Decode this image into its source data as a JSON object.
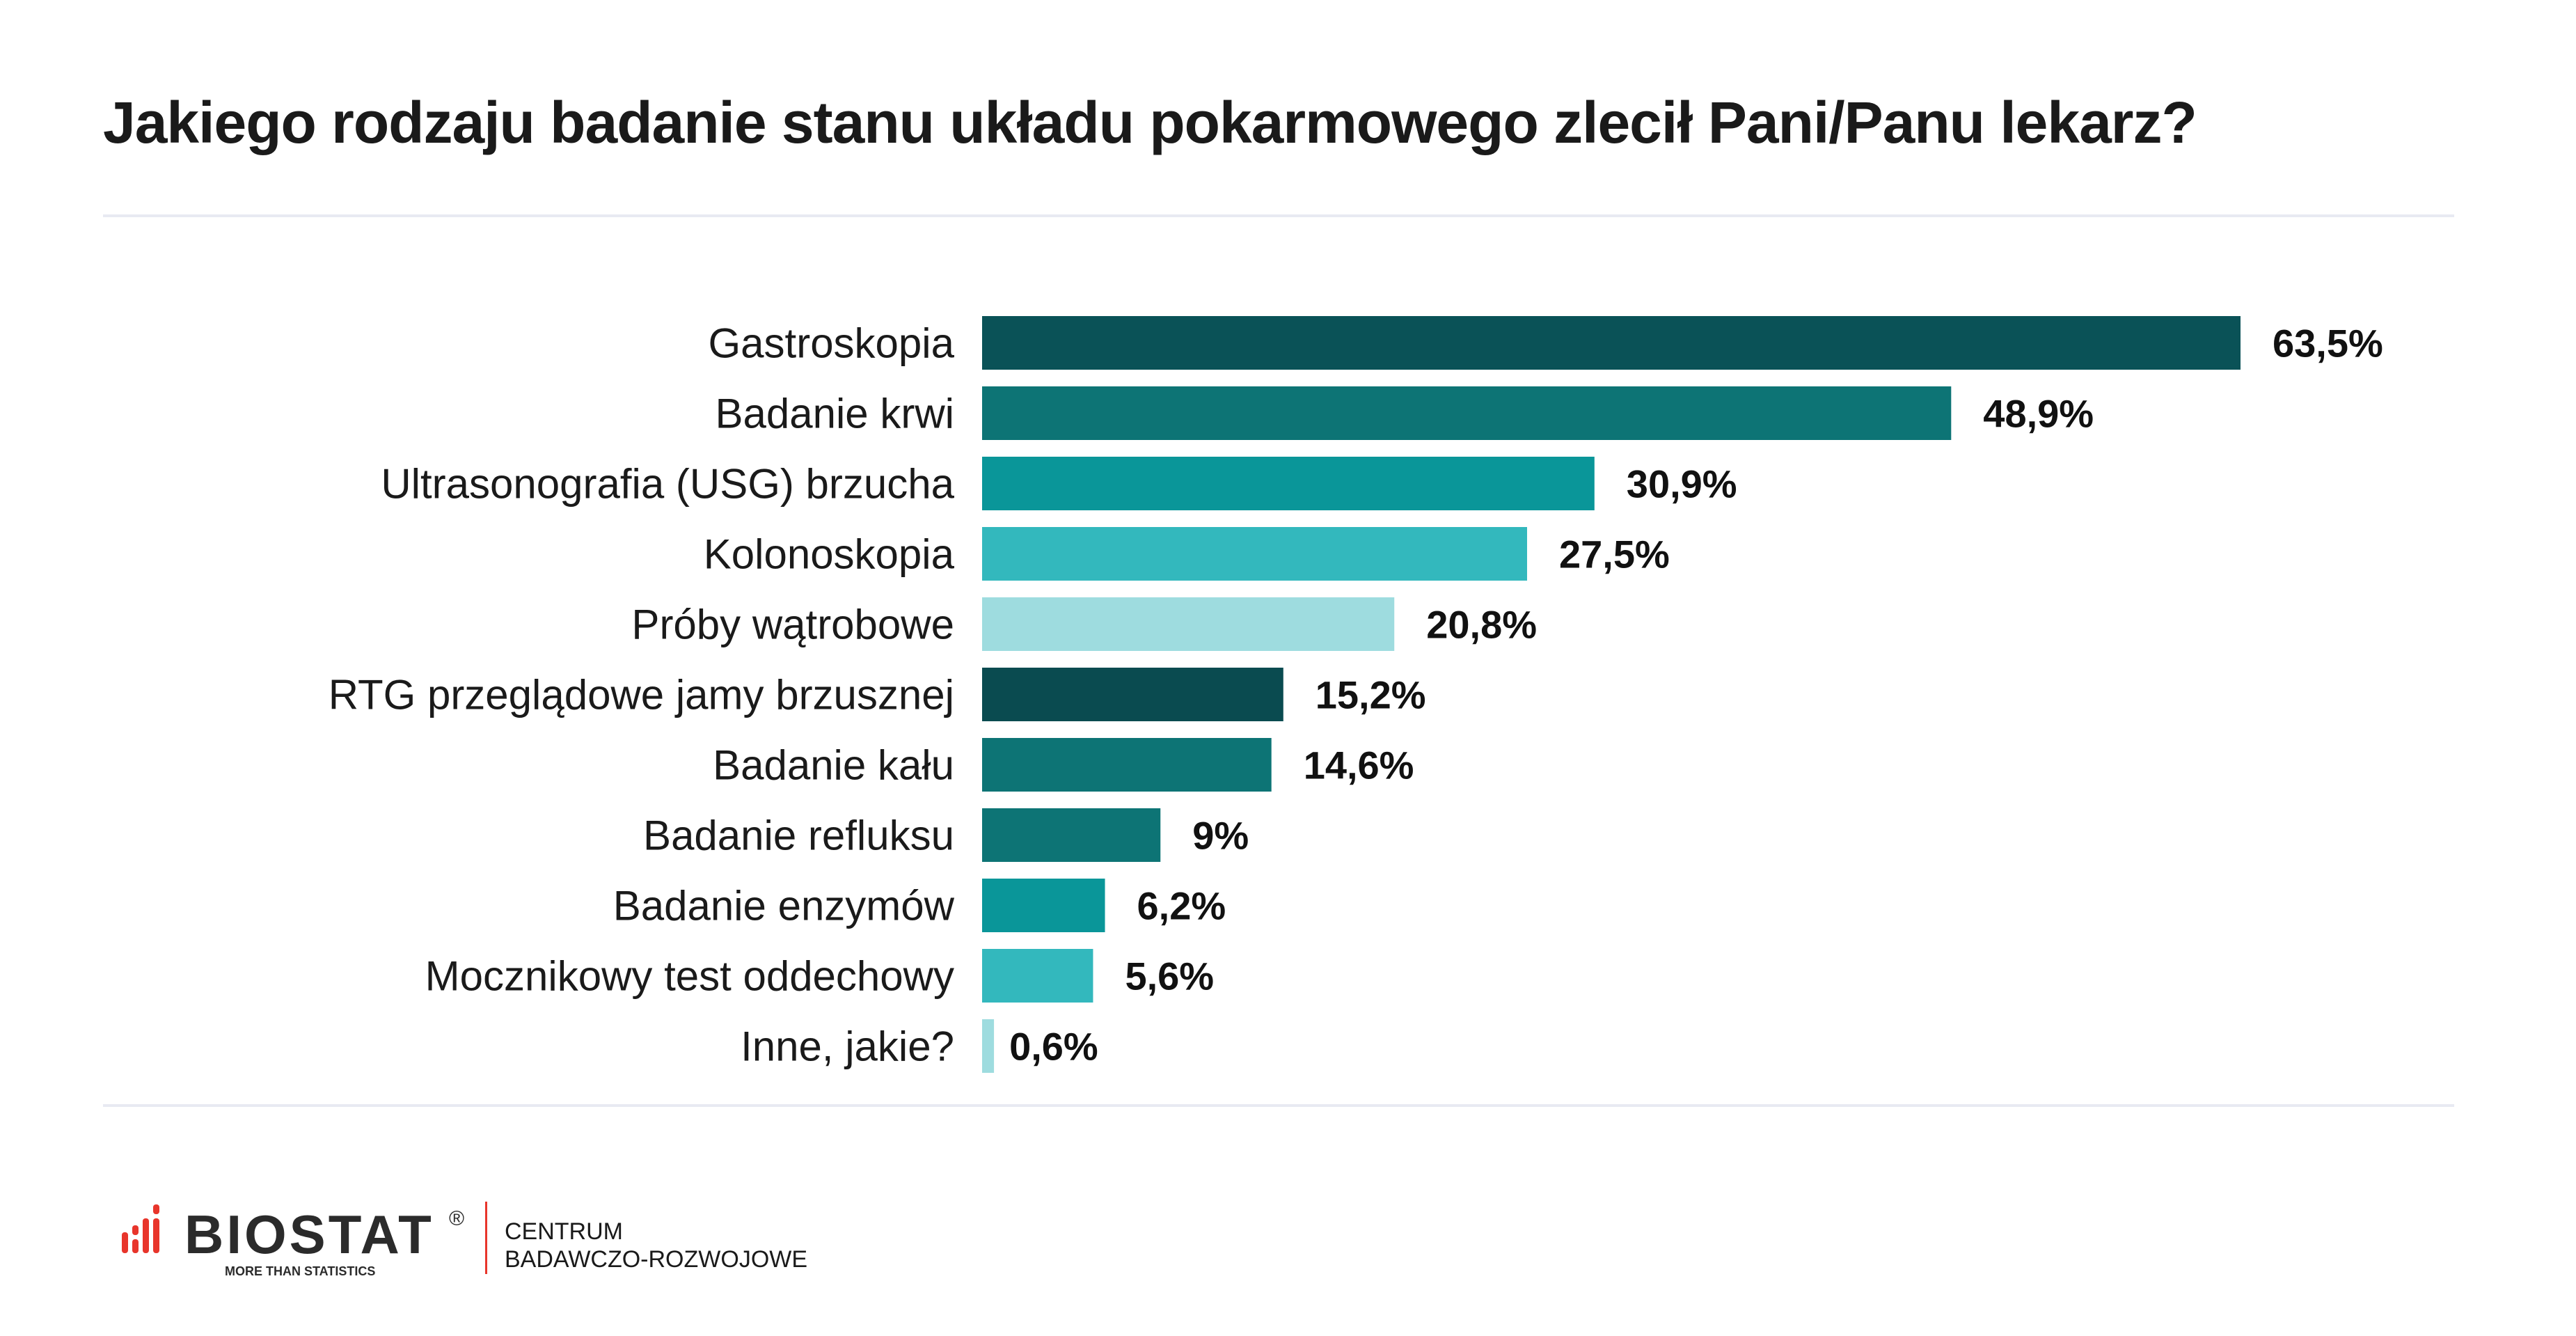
{
  "chart_data": {
    "type": "bar",
    "orientation": "horizontal",
    "title": "Jakiego rodzaju badanie stanu układu pokarmowego zlecił Pani/Panu lekarz?",
    "categories": [
      "Gastroskopia",
      "Badanie krwi",
      "Ultrasonografia (USG) brzucha",
      "Kolonoskopia",
      "Próby wątrobowe",
      "RTG przeglądowe jamy brzusznej",
      "Badanie kału",
      "Badanie refluksu",
      "Badanie enzymów",
      "Mocznikowy test oddechowy",
      "Inne, jakie?"
    ],
    "values": [
      63.5,
      48.9,
      30.9,
      27.5,
      20.8,
      15.2,
      14.6,
      9,
      6.2,
      5.6,
      0.6
    ],
    "value_labels": [
      "63,5%",
      "48,9%",
      "30,9%",
      "27,5%",
      "20,8%",
      "15,2%",
      "14,6%",
      "9%",
      "6,2%",
      "5,6%",
      "0,6%"
    ],
    "colors": [
      "#0a5257",
      "#0d7475",
      "#0a9699",
      "#33b8bd",
      "#9edcdf",
      "#0a4b50",
      "#0d7475",
      "#0d7475",
      "#0a9699",
      "#33b8bd",
      "#9edcdf"
    ],
    "xlabel": "",
    "ylabel": "",
    "grid": false,
    "legend": "none"
  },
  "footer": {
    "brand": "BIOSTAT",
    "registered": "®",
    "tagline": "MORE THAN STATISTICS",
    "center_line1": "CENTRUM",
    "center_line2": "BADAWCZO-ROZWOJOWE",
    "accent_color": "#e8352b"
  }
}
